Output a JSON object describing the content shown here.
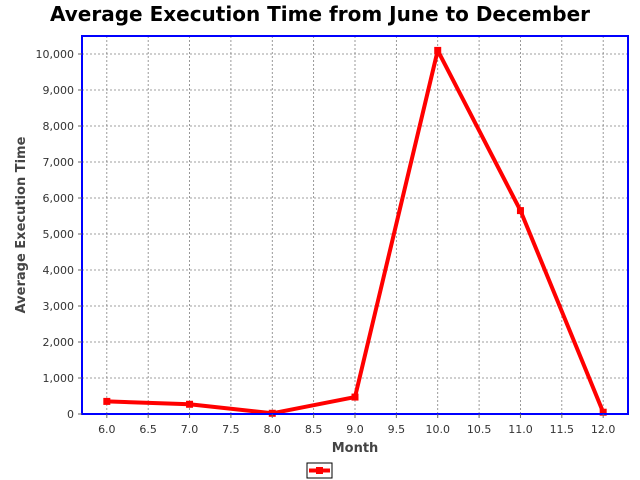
{
  "chart_data": {
    "type": "line",
    "title": "Average Execution Time from June to December",
    "xlabel": "Month",
    "ylabel": "Average Execution Time",
    "xlim": [
      5.7,
      12.3
    ],
    "ylim": [
      0,
      10500
    ],
    "xticks": [
      "6.0",
      "6.5",
      "7.0",
      "7.5",
      "8.0",
      "8.5",
      "9.0",
      "9.5",
      "10.0",
      "10.5",
      "11.0",
      "11.5",
      "12.0"
    ],
    "yticks": [
      "0",
      "1,000",
      "2,000",
      "3,000",
      "4,000",
      "5,000",
      "6,000",
      "7,000",
      "8,000",
      "9,000",
      "10,000"
    ],
    "grid": true,
    "legend_position": "bottom",
    "series": [
      {
        "color": "#ff0000",
        "x": [
          6,
          7,
          8,
          9,
          10,
          11,
          12
        ],
        "y": [
          350,
          270,
          20,
          470,
          10100,
          5650,
          50
        ]
      }
    ],
    "colors": {
      "plot_border": "#0000ff",
      "grid": "#808080"
    }
  }
}
